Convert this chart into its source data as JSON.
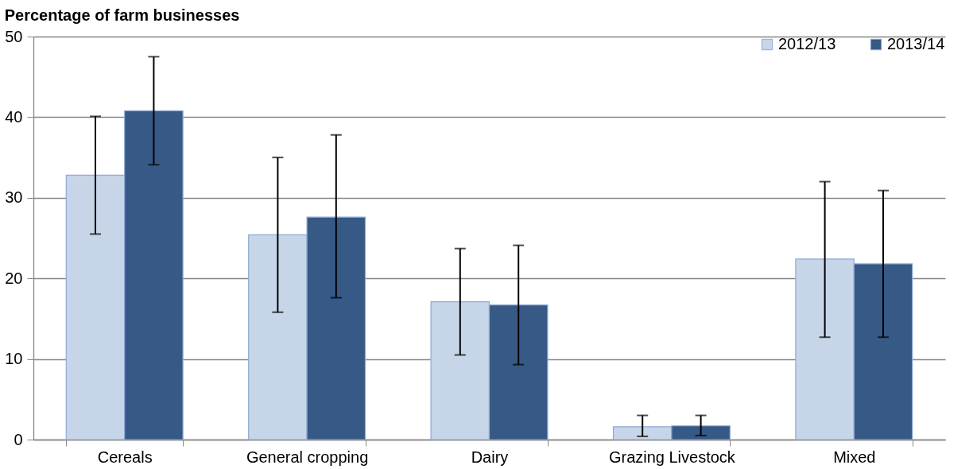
{
  "chart_data": {
    "type": "bar",
    "title": "Percentage of farm businesses",
    "categories": [
      "Cereals",
      "General cropping",
      "Dairy",
      "Grazing Livestock",
      "Mixed"
    ],
    "series": [
      {
        "name": "2012/13",
        "color": "#c6d5e8",
        "values": [
          32.8,
          25.4,
          17.1,
          1.6,
          22.4
        ],
        "errors": [
          [
            25.5,
            40.1
          ],
          [
            15.8,
            35.0
          ],
          [
            10.5,
            23.7
          ],
          [
            0.4,
            3.0
          ],
          [
            12.7,
            32.0
          ]
        ]
      },
      {
        "name": "2013/14",
        "color": "#365986",
        "values": [
          40.8,
          27.6,
          16.7,
          1.7,
          21.8
        ],
        "errors": [
          [
            34.1,
            47.5
          ],
          [
            17.6,
            37.8
          ],
          [
            9.3,
            24.1
          ],
          [
            0.5,
            3.0
          ],
          [
            12.7,
            30.9
          ]
        ]
      }
    ],
    "ylim": [
      0,
      50
    ],
    "yticks": [
      0,
      10,
      20,
      30,
      40,
      50
    ],
    "grid": "y",
    "legend": "top right"
  }
}
